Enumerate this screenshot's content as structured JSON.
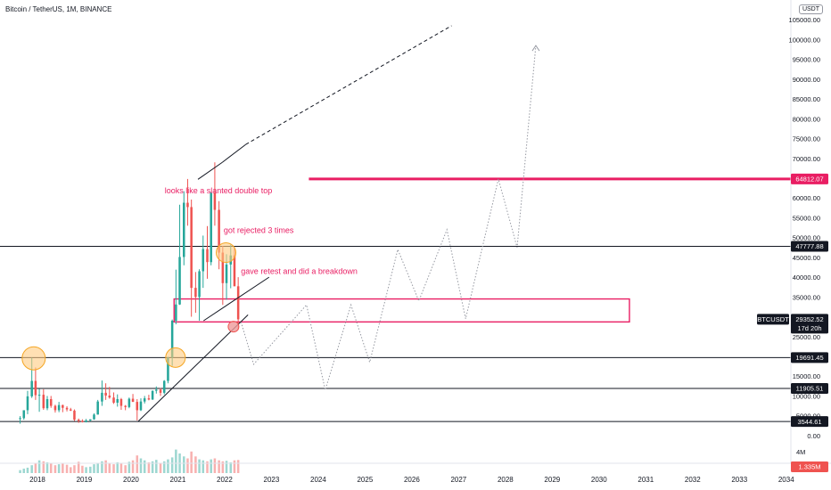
{
  "header": {
    "title": "Bitcoin / TetherUS, 1M, BINANCE",
    "currency_button": "USDT"
  },
  "colors": {
    "up": "#26a69a",
    "down": "#ef5350",
    "annotation": "#e91e63",
    "resistance": "#e91e63",
    "level_line": "#131722",
    "circle_fill": "#ffcc80",
    "circle_stroke": "#f5a623"
  },
  "chart_data": {
    "type": "candlestick",
    "price_axis": {
      "ylim": [
        -2500,
        110000
      ],
      "ticks": [
        {
          "value": 105000,
          "label": "105000.00"
        },
        {
          "value": 100000,
          "label": "100000.00"
        },
        {
          "value": 95000,
          "label": "95000.00"
        },
        {
          "value": 90000,
          "label": "90000.00"
        },
        {
          "value": 85000,
          "label": "85000.00"
        },
        {
          "value": 80000,
          "label": "80000.00"
        },
        {
          "value": 75000,
          "label": "75000.00"
        },
        {
          "value": 70000,
          "label": "70000.00"
        },
        {
          "value": 60000,
          "label": "60000.00"
        },
        {
          "value": 55000,
          "label": "55000.00"
        },
        {
          "value": 50000,
          "label": "50000.00"
        },
        {
          "value": 45000,
          "label": "45000.00"
        },
        {
          "value": 40000,
          "label": "40000.00"
        },
        {
          "value": 35000,
          "label": "35000.00"
        },
        {
          "value": 25000,
          "label": "25000.00"
        },
        {
          "value": 15000,
          "label": "15000.00"
        },
        {
          "value": 10000,
          "label": "10000.00"
        },
        {
          "value": 5000,
          "label": "5000.00"
        },
        {
          "value": 0,
          "label": "0.00"
        }
      ],
      "volume_label": "4M"
    },
    "time_axis": {
      "xlim": [
        2017.2,
        2034.1
      ],
      "ticks": [
        {
          "value": 2018,
          "label": "2018"
        },
        {
          "value": 2019,
          "label": "2019"
        },
        {
          "value": 2020,
          "label": "2020"
        },
        {
          "value": 2021,
          "label": "2021"
        },
        {
          "value": 2022,
          "label": "2022"
        },
        {
          "value": 2023,
          "label": "2023"
        },
        {
          "value": 2024,
          "label": "2024"
        },
        {
          "value": 2025,
          "label": "2025"
        },
        {
          "value": 2026,
          "label": "2026"
        },
        {
          "value": 2027,
          "label": "2027"
        },
        {
          "value": 2028,
          "label": "2028"
        },
        {
          "value": 2029,
          "label": "2029"
        },
        {
          "value": 2030,
          "label": "2030"
        },
        {
          "value": 2031,
          "label": "2031"
        },
        {
          "value": 2032,
          "label": "2032"
        },
        {
          "value": 2033,
          "label": "2033"
        },
        {
          "value": 2034,
          "label": "2034"
        }
      ]
    },
    "candles": [
      {
        "t": 2017.63,
        "o": 4300,
        "h": 4900,
        "l": 3000,
        "c": 4400
      },
      {
        "t": 2017.71,
        "o": 4400,
        "h": 6200,
        "l": 4000,
        "c": 6400
      },
      {
        "t": 2017.79,
        "o": 6400,
        "h": 11300,
        "l": 5400,
        "c": 9900
      },
      {
        "t": 2017.88,
        "o": 9900,
        "h": 19700,
        "l": 9500,
        "c": 13800
      },
      {
        "t": 2017.96,
        "o": 13800,
        "h": 17200,
        "l": 9000,
        "c": 10200
      },
      {
        "t": 2018.04,
        "o": 10200,
        "h": 11800,
        "l": 6000,
        "c": 10300
      },
      {
        "t": 2018.13,
        "o": 10300,
        "h": 11700,
        "l": 6500,
        "c": 6900
      },
      {
        "t": 2018.21,
        "o": 6900,
        "h": 10000,
        "l": 6400,
        "c": 9200
      },
      {
        "t": 2018.29,
        "o": 9200,
        "h": 10000,
        "l": 7000,
        "c": 7500
      },
      {
        "t": 2018.38,
        "o": 7500,
        "h": 7800,
        "l": 5800,
        "c": 6400
      },
      {
        "t": 2018.46,
        "o": 6400,
        "h": 8500,
        "l": 5900,
        "c": 7700
      },
      {
        "t": 2018.54,
        "o": 7700,
        "h": 7800,
        "l": 5900,
        "c": 7000
      },
      {
        "t": 2018.63,
        "o": 7000,
        "h": 7400,
        "l": 6100,
        "c": 6600
      },
      {
        "t": 2018.71,
        "o": 6600,
        "h": 7000,
        "l": 6200,
        "c": 6300
      },
      {
        "t": 2018.79,
        "o": 6300,
        "h": 6600,
        "l": 3700,
        "c": 4000
      },
      {
        "t": 2018.88,
        "o": 4000,
        "h": 4300,
        "l": 3200,
        "c": 3700
      },
      {
        "t": 2018.96,
        "o": 3700,
        "h": 4100,
        "l": 3300,
        "c": 3400
      },
      {
        "t": 2019.04,
        "o": 3400,
        "h": 4200,
        "l": 3300,
        "c": 3800
      },
      {
        "t": 2019.13,
        "o": 3800,
        "h": 4100,
        "l": 3600,
        "c": 4100
      },
      {
        "t": 2019.21,
        "o": 4100,
        "h": 5600,
        "l": 4000,
        "c": 5300
      },
      {
        "t": 2019.29,
        "o": 5300,
        "h": 9000,
        "l": 5300,
        "c": 8600
      },
      {
        "t": 2019.38,
        "o": 8600,
        "h": 13900,
        "l": 7500,
        "c": 10800
      },
      {
        "t": 2019.46,
        "o": 10800,
        "h": 13200,
        "l": 9000,
        "c": 10100
      },
      {
        "t": 2019.54,
        "o": 10100,
        "h": 12300,
        "l": 9300,
        "c": 9600
      },
      {
        "t": 2019.63,
        "o": 9600,
        "h": 10900,
        "l": 8000,
        "c": 8300
      },
      {
        "t": 2019.71,
        "o": 8300,
        "h": 10400,
        "l": 7300,
        "c": 9200
      },
      {
        "t": 2019.79,
        "o": 9200,
        "h": 9500,
        "l": 6500,
        "c": 7500
      },
      {
        "t": 2019.88,
        "o": 7500,
        "h": 7700,
        "l": 6400,
        "c": 7200
      },
      {
        "t": 2019.96,
        "o": 7200,
        "h": 9600,
        "l": 6900,
        "c": 9300
      },
      {
        "t": 2020.04,
        "o": 9300,
        "h": 10500,
        "l": 8500,
        "c": 8500
      },
      {
        "t": 2020.13,
        "o": 8500,
        "h": 9200,
        "l": 3800,
        "c": 6400
      },
      {
        "t": 2020.21,
        "o": 6400,
        "h": 9400,
        "l": 6200,
        "c": 8600
      },
      {
        "t": 2020.29,
        "o": 8600,
        "h": 10000,
        "l": 8100,
        "c": 9400
      },
      {
        "t": 2020.38,
        "o": 9400,
        "h": 10300,
        "l": 8900,
        "c": 9100
      },
      {
        "t": 2020.46,
        "o": 9100,
        "h": 11400,
        "l": 9000,
        "c": 11300
      },
      {
        "t": 2020.54,
        "o": 11300,
        "h": 12400,
        "l": 10600,
        "c": 11600
      },
      {
        "t": 2020.63,
        "o": 11600,
        "h": 12000,
        "l": 10000,
        "c": 10800
      },
      {
        "t": 2020.71,
        "o": 10800,
        "h": 14000,
        "l": 10400,
        "c": 13800
      },
      {
        "t": 2020.79,
        "o": 13800,
        "h": 19900,
        "l": 13200,
        "c": 19700
      },
      {
        "t": 2020.88,
        "o": 19700,
        "h": 29300,
        "l": 17600,
        "c": 29000
      },
      {
        "t": 2020.96,
        "o": 29000,
        "h": 41900,
        "l": 28100,
        "c": 33100
      },
      {
        "t": 2021.04,
        "o": 33100,
        "h": 58300,
        "l": 33000,
        "c": 45100
      },
      {
        "t": 2021.13,
        "o": 45100,
        "h": 61700,
        "l": 43000,
        "c": 58800
      },
      {
        "t": 2021.21,
        "o": 58800,
        "h": 64800,
        "l": 53000,
        "c": 57700
      },
      {
        "t": 2021.29,
        "o": 57700,
        "h": 59600,
        "l": 30000,
        "c": 37300
      },
      {
        "t": 2021.38,
        "o": 37300,
        "h": 41300,
        "l": 31000,
        "c": 35000
      },
      {
        "t": 2021.46,
        "o": 35000,
        "h": 42000,
        "l": 29000,
        "c": 41500
      },
      {
        "t": 2021.54,
        "o": 41500,
        "h": 50500,
        "l": 37300,
        "c": 47100
      },
      {
        "t": 2021.63,
        "o": 47100,
        "h": 52900,
        "l": 39600,
        "c": 43800
      },
      {
        "t": 2021.71,
        "o": 43800,
        "h": 61500,
        "l": 43000,
        "c": 61300
      },
      {
        "t": 2021.79,
        "o": 61300,
        "h": 69000,
        "l": 53000,
        "c": 57000
      },
      {
        "t": 2021.88,
        "o": 57000,
        "h": 59200,
        "l": 42000,
        "c": 46200
      },
      {
        "t": 2021.96,
        "o": 46200,
        "h": 47900,
        "l": 33000,
        "c": 38500
      },
      {
        "t": 2022.04,
        "o": 38500,
        "h": 45800,
        "l": 34300,
        "c": 43200
      },
      {
        "t": 2022.13,
        "o": 43200,
        "h": 48200,
        "l": 37200,
        "c": 45500
      },
      {
        "t": 2022.21,
        "o": 45500,
        "h": 47400,
        "l": 37700,
        "c": 37700
      },
      {
        "t": 2022.29,
        "o": 37700,
        "h": 40000,
        "l": 26700,
        "c": 29352
      }
    ],
    "volume": [
      {
        "t": 2017.63,
        "v": 0.3
      },
      {
        "t": 2017.71,
        "v": 0.45
      },
      {
        "t": 2017.79,
        "v": 0.55
      },
      {
        "t": 2017.88,
        "v": 0.8
      },
      {
        "t": 2017.96,
        "v": 1.0
      },
      {
        "t": 2018.04,
        "v": 1.3
      },
      {
        "t": 2018.13,
        "v": 1.2
      },
      {
        "t": 2018.21,
        "v": 1.1
      },
      {
        "t": 2018.29,
        "v": 1.0
      },
      {
        "t": 2018.38,
        "v": 0.8
      },
      {
        "t": 2018.46,
        "v": 0.9
      },
      {
        "t": 2018.54,
        "v": 0.95
      },
      {
        "t": 2018.63,
        "v": 0.85
      },
      {
        "t": 2018.71,
        "v": 0.6
      },
      {
        "t": 2018.79,
        "v": 0.8
      },
      {
        "t": 2018.88,
        "v": 1.15
      },
      {
        "t": 2018.96,
        "v": 0.75
      },
      {
        "t": 2019.04,
        "v": 0.6
      },
      {
        "t": 2019.13,
        "v": 0.65
      },
      {
        "t": 2019.21,
        "v": 0.9
      },
      {
        "t": 2019.29,
        "v": 1.0
      },
      {
        "t": 2019.38,
        "v": 1.2
      },
      {
        "t": 2019.46,
        "v": 1.3
      },
      {
        "t": 2019.54,
        "v": 1.0
      },
      {
        "t": 2019.63,
        "v": 0.9
      },
      {
        "t": 2019.71,
        "v": 1.1
      },
      {
        "t": 2019.79,
        "v": 0.95
      },
      {
        "t": 2019.88,
        "v": 0.8
      },
      {
        "t": 2019.96,
        "v": 1.15
      },
      {
        "t": 2020.04,
        "v": 1.3
      },
      {
        "t": 2020.13,
        "v": 1.8
      },
      {
        "t": 2020.21,
        "v": 1.5
      },
      {
        "t": 2020.29,
        "v": 1.3
      },
      {
        "t": 2020.38,
        "v": 1.1
      },
      {
        "t": 2020.46,
        "v": 1.2
      },
      {
        "t": 2020.54,
        "v": 1.35
      },
      {
        "t": 2020.63,
        "v": 1.0
      },
      {
        "t": 2020.71,
        "v": 1.2
      },
      {
        "t": 2020.79,
        "v": 1.4
      },
      {
        "t": 2020.88,
        "v": 1.6
      },
      {
        "t": 2020.96,
        "v": 2.4
      },
      {
        "t": 2021.04,
        "v": 2.0
      },
      {
        "t": 2021.13,
        "v": 1.7
      },
      {
        "t": 2021.21,
        "v": 1.5
      },
      {
        "t": 2021.29,
        "v": 2.2
      },
      {
        "t": 2021.38,
        "v": 1.7
      },
      {
        "t": 2021.46,
        "v": 1.4
      },
      {
        "t": 2021.54,
        "v": 1.3
      },
      {
        "t": 2021.63,
        "v": 1.2
      },
      {
        "t": 2021.71,
        "v": 1.4
      },
      {
        "t": 2021.79,
        "v": 1.5
      },
      {
        "t": 2021.88,
        "v": 1.3
      },
      {
        "t": 2021.96,
        "v": 1.2
      },
      {
        "t": 2022.04,
        "v": 1.25
      },
      {
        "t": 2022.13,
        "v": 1.1
      },
      {
        "t": 2022.21,
        "v": 1.3
      },
      {
        "t": 2022.29,
        "v": 1.335
      }
    ],
    "horizontal_levels": [
      {
        "value": 47777.88,
        "label": "47777.88",
        "color": "#131722",
        "x_from": 2017.2
      },
      {
        "value": 19691.45,
        "label": "19691.45",
        "color": "#131722",
        "x_from": 2017.2
      },
      {
        "value": 11905.51,
        "label": "11905.51",
        "color": "#131722",
        "x_from": 2017.2
      },
      {
        "value": 3544.61,
        "label": "3544.61",
        "color": "#131722",
        "x_from": 2017.2
      },
      {
        "value": 64812.07,
        "label": "64812.07",
        "color": "#e91e63",
        "x_from": 2023.8,
        "thick": true
      }
    ],
    "current_price": {
      "label": "29352.52",
      "countdown": "17d 20h",
      "symbol": "BTCUSDT",
      "value": 29352.52
    },
    "volume_tag": "1.335M",
    "zone": {
      "x1": 2020.92,
      "x2": 2030.65,
      "y1": 34500,
      "y2": 28700
    },
    "trendlines": [
      {
        "x1": 2020.15,
        "y1": 3544,
        "x2": 2022.5,
        "y2": 30500,
        "dashed": false
      },
      {
        "x1": 2021.55,
        "y1": 29000,
        "x2": 2022.95,
        "y2": 40000,
        "dashed": false
      },
      {
        "x1": 2021.43,
        "y1": 64700,
        "x2": 2021.95,
        "y2": 69000,
        "dashed": false
      },
      {
        "x1": 2021.95,
        "y1": 69000,
        "x2": 2022.45,
        "y2": 73500,
        "dashed": false
      },
      {
        "x1": 2022.45,
        "y1": 73500,
        "x2": 2026.85,
        "y2": 103500,
        "dashed": true
      }
    ],
    "projection": [
      [
        2022.35,
        28700
      ],
      [
        2022.62,
        18000
      ],
      [
        2023.75,
        33000
      ],
      [
        2024.15,
        11500
      ],
      [
        2024.7,
        33000
      ],
      [
        2025.1,
        18500
      ],
      [
        2025.7,
        47000
      ],
      [
        2026.15,
        34000
      ],
      [
        2026.75,
        52000
      ],
      [
        2027.15,
        29500
      ],
      [
        2027.85,
        64812
      ],
      [
        2028.25,
        47500
      ],
      [
        2028.65,
        98500
      ]
    ],
    "highlight_circles": [
      {
        "x": 2017.92,
        "y": 19500,
        "r": 13
      },
      {
        "x": 2020.95,
        "y": 19691,
        "r": 11
      },
      {
        "x": 2022.03,
        "y": 46200,
        "r": 11
      },
      {
        "x": 2022.19,
        "y": 27500,
        "r": 6,
        "small": true
      }
    ],
    "annotations": [
      {
        "text": "looks like a slanted double top",
        "x": 2020.72,
        "y": 61200
      },
      {
        "text": "got rejected 3 times",
        "x": 2021.98,
        "y": 51200
      },
      {
        "text": "gave retest and did a breakdown",
        "x": 2022.35,
        "y": 40800
      }
    ]
  }
}
